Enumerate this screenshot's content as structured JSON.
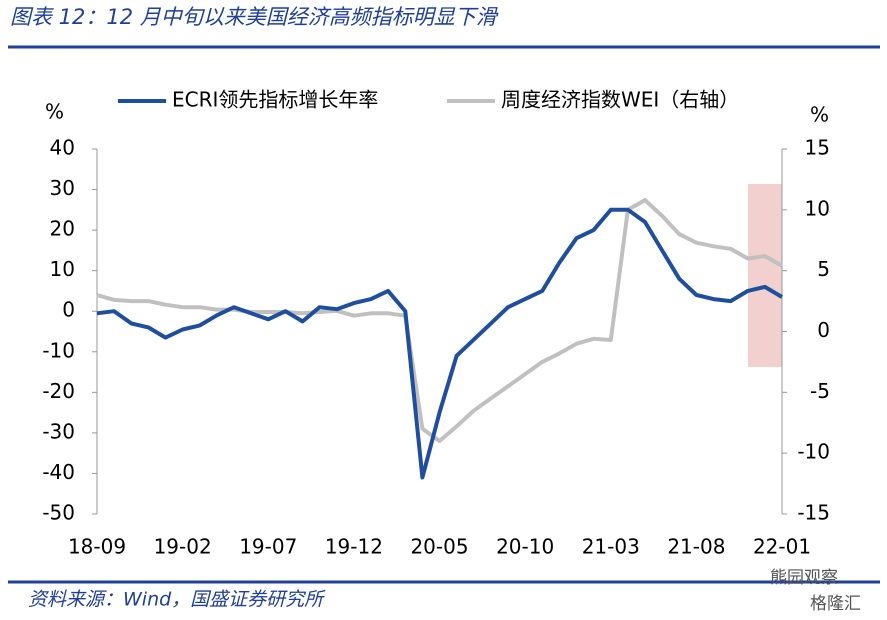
{
  "chart_data": {
    "type": "line",
    "title": "图表 12：12 月中旬以来美国经济高频指标明显下滑",
    "source": "资料来源：Wind，国盛证券研究所",
    "watermark": "熊园观察",
    "logo": "格隆汇",
    "ylabel": "%",
    "y2label": "%",
    "categories": [
      "18-09",
      null,
      null,
      null,
      null,
      "19-02",
      null,
      null,
      null,
      null,
      "19-07",
      null,
      null,
      null,
      null,
      "19-12",
      null,
      null,
      null,
      null,
      "20-05",
      null,
      null,
      null,
      null,
      "20-10",
      null,
      null,
      null,
      null,
      "21-03",
      null,
      null,
      null,
      null,
      "21-08",
      null,
      null,
      null,
      null,
      "22-01"
    ],
    "series": [
      {
        "name": "ECRI领先指标增长年率",
        "color": "#1f4e9f",
        "values": [
          -0.5,
          0,
          -3,
          -4,
          -6.5,
          -4.5,
          -3.5,
          -1,
          1,
          -0.5,
          -2,
          0,
          -2.5,
          1,
          0.5,
          2,
          3,
          5,
          0,
          -41,
          -25,
          -11,
          -7,
          -3,
          1,
          3,
          5,
          12,
          18,
          20,
          25,
          25,
          22,
          15,
          8,
          4,
          3,
          2.5,
          5,
          6,
          3.5
        ]
      },
      {
        "name": "周度经济指数WEI（右轴）",
        "color": "#c0c0c0",
        "axis": "y2",
        "values": [
          3,
          2.6,
          2.5,
          2.5,
          2.2,
          2,
          2,
          1.8,
          1.8,
          1.6,
          1.6,
          1.6,
          1.5,
          1.6,
          1.7,
          1.3,
          1.5,
          1.5,
          1.3,
          -8,
          -9,
          -7.8,
          -6.5,
          -5.5,
          -4.5,
          -3.5,
          -2.5,
          -1.8,
          -1,
          -0.6,
          -0.7,
          10,
          10.8,
          9.5,
          8,
          7.3,
          7,
          6.8,
          6,
          6.2,
          5.4
        ]
      }
    ],
    "ylim": [
      -50,
      40
    ],
    "yticks": [
      40,
      30,
      20,
      10,
      0,
      -10,
      -20,
      -30,
      -40,
      -50
    ],
    "y2lim": [
      -15,
      15
    ],
    "y2ticks": [
      15,
      10,
      5,
      0,
      -5,
      -10,
      -15
    ],
    "legend": "top"
  }
}
